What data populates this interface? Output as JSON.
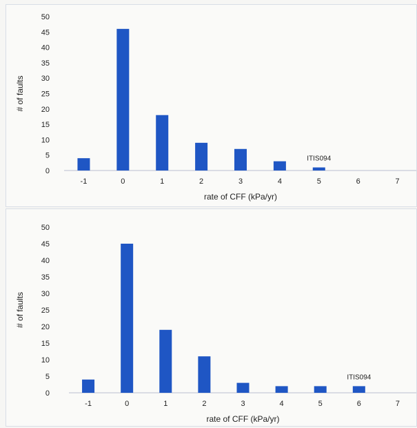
{
  "chart_data": [
    {
      "type": "bar",
      "title": "",
      "xlabel": "rate of CFF (kPa/yr)",
      "ylabel": "# of faults",
      "categories": [
        "-1",
        "0",
        "1",
        "2",
        "3",
        "4",
        "5",
        "6",
        "7"
      ],
      "values": [
        4,
        46,
        18,
        9,
        7,
        3,
        1,
        0,
        0
      ],
      "ylim": [
        0,
        50
      ],
      "yticks": [
        "0",
        "5",
        "10",
        "15",
        "20",
        "25",
        "30",
        "35",
        "40",
        "45",
        "50"
      ],
      "color": "#1f56c4",
      "grid": false,
      "annotation": {
        "text": "ITIS094",
        "category": "5"
      }
    },
    {
      "type": "bar",
      "title": "",
      "xlabel": "rate of CFF (kPa/yr)",
      "ylabel": "# of faults",
      "categories": [
        "-1",
        "0",
        "1",
        "2",
        "3",
        "4",
        "5",
        "6",
        "7"
      ],
      "values": [
        4,
        45,
        19,
        11,
        3,
        2,
        2,
        2,
        0
      ],
      "ylim": [
        0,
        50
      ],
      "yticks": [
        "0",
        "5",
        "10",
        "15",
        "20",
        "25",
        "30",
        "35",
        "40",
        "45",
        "50"
      ],
      "color": "#1f56c4",
      "grid": false,
      "annotation": {
        "text": "ITIS094",
        "category": "6"
      }
    }
  ]
}
